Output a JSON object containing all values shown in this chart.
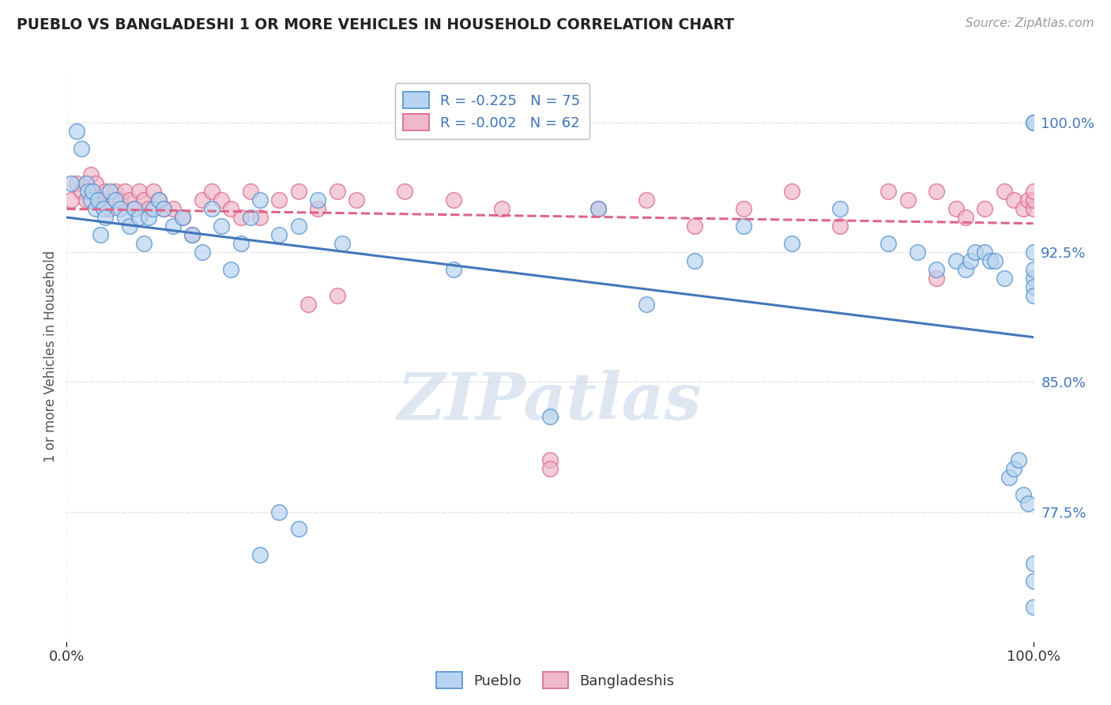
{
  "title": "PUEBLO VS BANGLADESHI 1 OR MORE VEHICLES IN HOUSEHOLD CORRELATION CHART",
  "source": "Source: ZipAtlas.com",
  "ylabel": "1 or more Vehicles in Household",
  "ytick_values": [
    77.5,
    85.0,
    92.5,
    100.0
  ],
  "legend_entry1": "R = -0.225   N = 75",
  "legend_entry2": "R = -0.002   N = 62",
  "legend_label1": "Pueblo",
  "legend_label2": "Bangladeshis",
  "pueblo_color": "#b8d4f0",
  "bangladeshi_color": "#f0b8cc",
  "pueblo_edge_color": "#5590cc",
  "bangladeshi_edge_color": "#dd6688",
  "pueblo_line_color": "#4477bb",
  "bangladeshi_line_color": "#dd6688",
  "watermark_text": "ZIPatlas",
  "watermark_color": "#c8d8e8",
  "background_color": "#ffffff",
  "xlim": [
    0,
    100
  ],
  "ylim": [
    70,
    103
  ],
  "pueblo_x": [
    0.5,
    1.0,
    1.5,
    2.0,
    2.2,
    2.5,
    2.7,
    3.0,
    3.2,
    3.5,
    3.8,
    4.0,
    4.5,
    5.0,
    5.5,
    6.0,
    6.5,
    7.0,
    7.5,
    8.0,
    8.5,
    9.0,
    9.5,
    10.0,
    11.0,
    12.0,
    13.0,
    14.0,
    15.0,
    16.0,
    17.0,
    18.0,
    19.0,
    20.0,
    22.0,
    24.0,
    26.0,
    28.5,
    40.0,
    50.0,
    55.0,
    60.0,
    65.0,
    70.0,
    75.0,
    80.0,
    85.0,
    88.0,
    90.0,
    92.0,
    93.0,
    93.5,
    94.0,
    95.0,
    95.5,
    96.0,
    97.0,
    97.5,
    98.0,
    98.5,
    99.0,
    99.5,
    100.0,
    100.0,
    100.0,
    100.0,
    100.0,
    100.0,
    100.0,
    100.0,
    100.0,
    100.0,
    20.0,
    22.0,
    24.0
  ],
  "pueblo_y": [
    96.5,
    99.5,
    98.5,
    96.5,
    96.0,
    95.5,
    96.0,
    95.0,
    95.5,
    93.5,
    95.0,
    94.5,
    96.0,
    95.5,
    95.0,
    94.5,
    94.0,
    95.0,
    94.5,
    93.0,
    94.5,
    95.0,
    95.5,
    95.0,
    94.0,
    94.5,
    93.5,
    92.5,
    95.0,
    94.0,
    91.5,
    93.0,
    94.5,
    95.5,
    93.5,
    94.0,
    95.5,
    93.0,
    91.5,
    83.0,
    95.0,
    89.5,
    92.0,
    94.0,
    93.0,
    95.0,
    93.0,
    92.5,
    91.5,
    92.0,
    91.5,
    92.0,
    92.5,
    92.5,
    92.0,
    92.0,
    91.0,
    79.5,
    80.0,
    80.5,
    78.5,
    78.0,
    100.0,
    100.0,
    92.5,
    91.0,
    91.5,
    90.5,
    90.0,
    74.5,
    72.0,
    73.5,
    75.0,
    77.5,
    76.5
  ],
  "bangladeshi_x": [
    0.5,
    1.0,
    1.5,
    2.0,
    2.5,
    3.0,
    3.5,
    4.0,
    4.5,
    5.0,
    5.5,
    6.0,
    6.5,
    7.0,
    7.5,
    8.0,
    8.5,
    9.0,
    9.5,
    10.0,
    11.0,
    12.0,
    13.0,
    14.0,
    15.0,
    16.0,
    17.0,
    18.0,
    19.0,
    20.0,
    22.0,
    24.0,
    26.0,
    28.0,
    30.0,
    35.0,
    40.0,
    45.0,
    50.0,
    55.0,
    60.0,
    65.0,
    70.0,
    75.0,
    80.0,
    85.0,
    87.0,
    90.0,
    92.0,
    93.0,
    95.0,
    97.0,
    98.0,
    99.0,
    99.5,
    100.0,
    100.0,
    100.0,
    25.0,
    28.0,
    50.0,
    90.0
  ],
  "bangladeshi_y": [
    95.5,
    96.5,
    96.0,
    95.5,
    97.0,
    96.5,
    95.5,
    96.0,
    95.0,
    96.0,
    95.5,
    96.0,
    95.5,
    95.0,
    96.0,
    95.5,
    95.0,
    96.0,
    95.5,
    95.0,
    95.0,
    94.5,
    93.5,
    95.5,
    96.0,
    95.5,
    95.0,
    94.5,
    96.0,
    94.5,
    95.5,
    96.0,
    95.0,
    96.0,
    95.5,
    96.0,
    95.5,
    95.0,
    80.5,
    95.0,
    95.5,
    94.0,
    95.0,
    96.0,
    94.0,
    96.0,
    95.5,
    96.0,
    95.0,
    94.5,
    95.0,
    96.0,
    95.5,
    95.0,
    95.5,
    95.0,
    95.5,
    96.0,
    89.5,
    90.0,
    80.0,
    91.0
  ]
}
